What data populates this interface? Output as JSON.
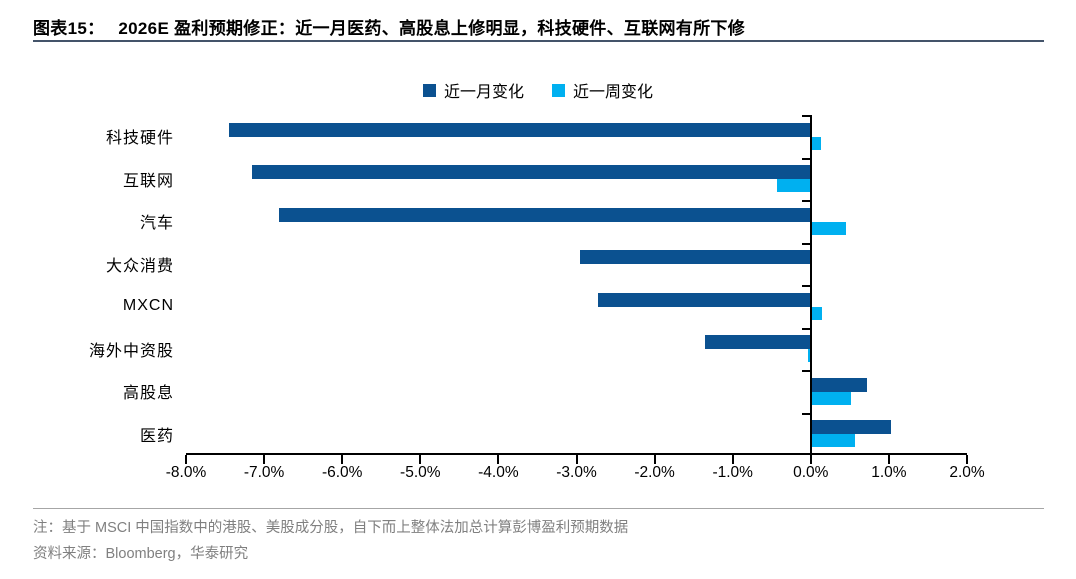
{
  "header": {
    "figure_label": "图表15：",
    "title": "2026E 盈利预期修正：近一月医药、高股息上修明显，科技硬件、互联网有所下修"
  },
  "chart_data": {
    "type": "bar",
    "orientation": "horizontal",
    "title": "",
    "categories": [
      "科技硬件",
      "互联网",
      "汽车",
      "大众消费",
      "MXCN",
      "海外中资股",
      "高股息",
      "医药"
    ],
    "series": [
      {
        "name": "近一月变化",
        "color": "#0B5190",
        "values": [
          -7.45,
          -7.15,
          -6.81,
          -2.96,
          -2.72,
          -1.35,
          0.72,
          1.03
        ]
      },
      {
        "name": "近一周变化",
        "color": "#00B0F0",
        "values": [
          0.13,
          -0.43,
          0.45,
          0.0,
          0.14,
          -0.03,
          0.51,
          0.57
        ]
      }
    ],
    "xlim": [
      -8,
      2
    ],
    "x_tick_labels": [
      "-8.0%",
      "-7.0%",
      "-6.0%",
      "-5.0%",
      "-4.0%",
      "-3.0%",
      "-2.0%",
      "-1.0%",
      "0.0%",
      "1.0%",
      "2.0%"
    ],
    "unit": "percent",
    "grid": false,
    "legend_position": "top-center"
  },
  "footer": {
    "note": "注：基于 MSCI 中国指数中的港股、美股成分股，自下而上整体法加总计算彭博盈利预期数据",
    "source": "资料来源：Bloomberg，华泰研究"
  },
  "colors": {
    "month_series": "#0B5190",
    "week_series": "#00B0F0",
    "axis": "#000000",
    "title_text": "#000000",
    "title_rule": "#44546A",
    "divider": "#A6A6A6",
    "note_text": "#808080"
  }
}
